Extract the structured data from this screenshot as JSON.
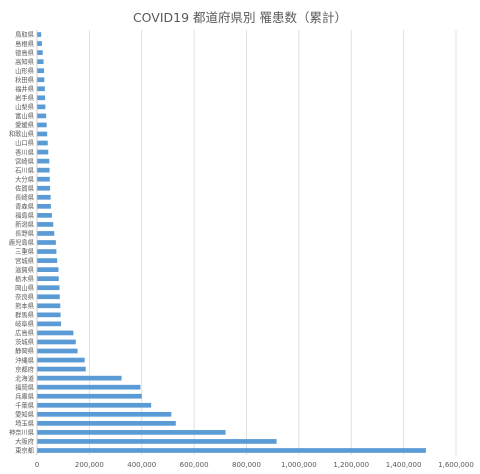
{
  "chart_data": {
    "type": "bar",
    "orientation": "horizontal",
    "title": "COVID19 都道府県別 罹患数（累計）",
    "xlabel": "",
    "ylabel": "",
    "xlim": [
      0,
      1600000
    ],
    "x_ticks": [
      0,
      200000,
      400000,
      600000,
      800000,
      1000000,
      1200000,
      1400000,
      1600000
    ],
    "x_tick_labels": [
      "0",
      "200,000",
      "400,000",
      "600,000",
      "800,000",
      "1,000,000",
      "1,200,000",
      "1,400,000",
      "1,600,000"
    ],
    "grid": "vertical",
    "legend": "none",
    "bar_color": "#5b9bd5",
    "categories": [
      "鳥取県",
      "島根県",
      "徳島県",
      "高知県",
      "山形県",
      "秋田県",
      "福井県",
      "岩手県",
      "山梨県",
      "富山県",
      "愛媛県",
      "和歌山県",
      "山口県",
      "香川県",
      "宮崎県",
      "石川県",
      "大分県",
      "佐賀県",
      "長崎県",
      "青森県",
      "福島県",
      "新潟県",
      "長野県",
      "鹿児島県",
      "三重県",
      "宮城県",
      "滋賀県",
      "栃木県",
      "岡山県",
      "奈良県",
      "熊本県",
      "群馬県",
      "岐阜県",
      "広島県",
      "茨城県",
      "静岡県",
      "沖縄県",
      "京都府",
      "北海道",
      "福岡県",
      "兵庫県",
      "千葉県",
      "愛知県",
      "埼玉県",
      "神奈川県",
      "大阪府",
      "東京都"
    ],
    "values": [
      16000,
      19000,
      22000,
      25000,
      27000,
      28000,
      30000,
      31000,
      32000,
      35000,
      37000,
      39000,
      41000,
      43000,
      47000,
      48000,
      49000,
      50000,
      52000,
      53000,
      57000,
      62000,
      66000,
      72000,
      74000,
      77000,
      82000,
      83000,
      86000,
      87000,
      89000,
      90000,
      92000,
      139000,
      148000,
      155000,
      182000,
      186000,
      323000,
      395000,
      400000,
      436000,
      513000,
      530000,
      720000,
      915000,
      1485000
    ]
  }
}
